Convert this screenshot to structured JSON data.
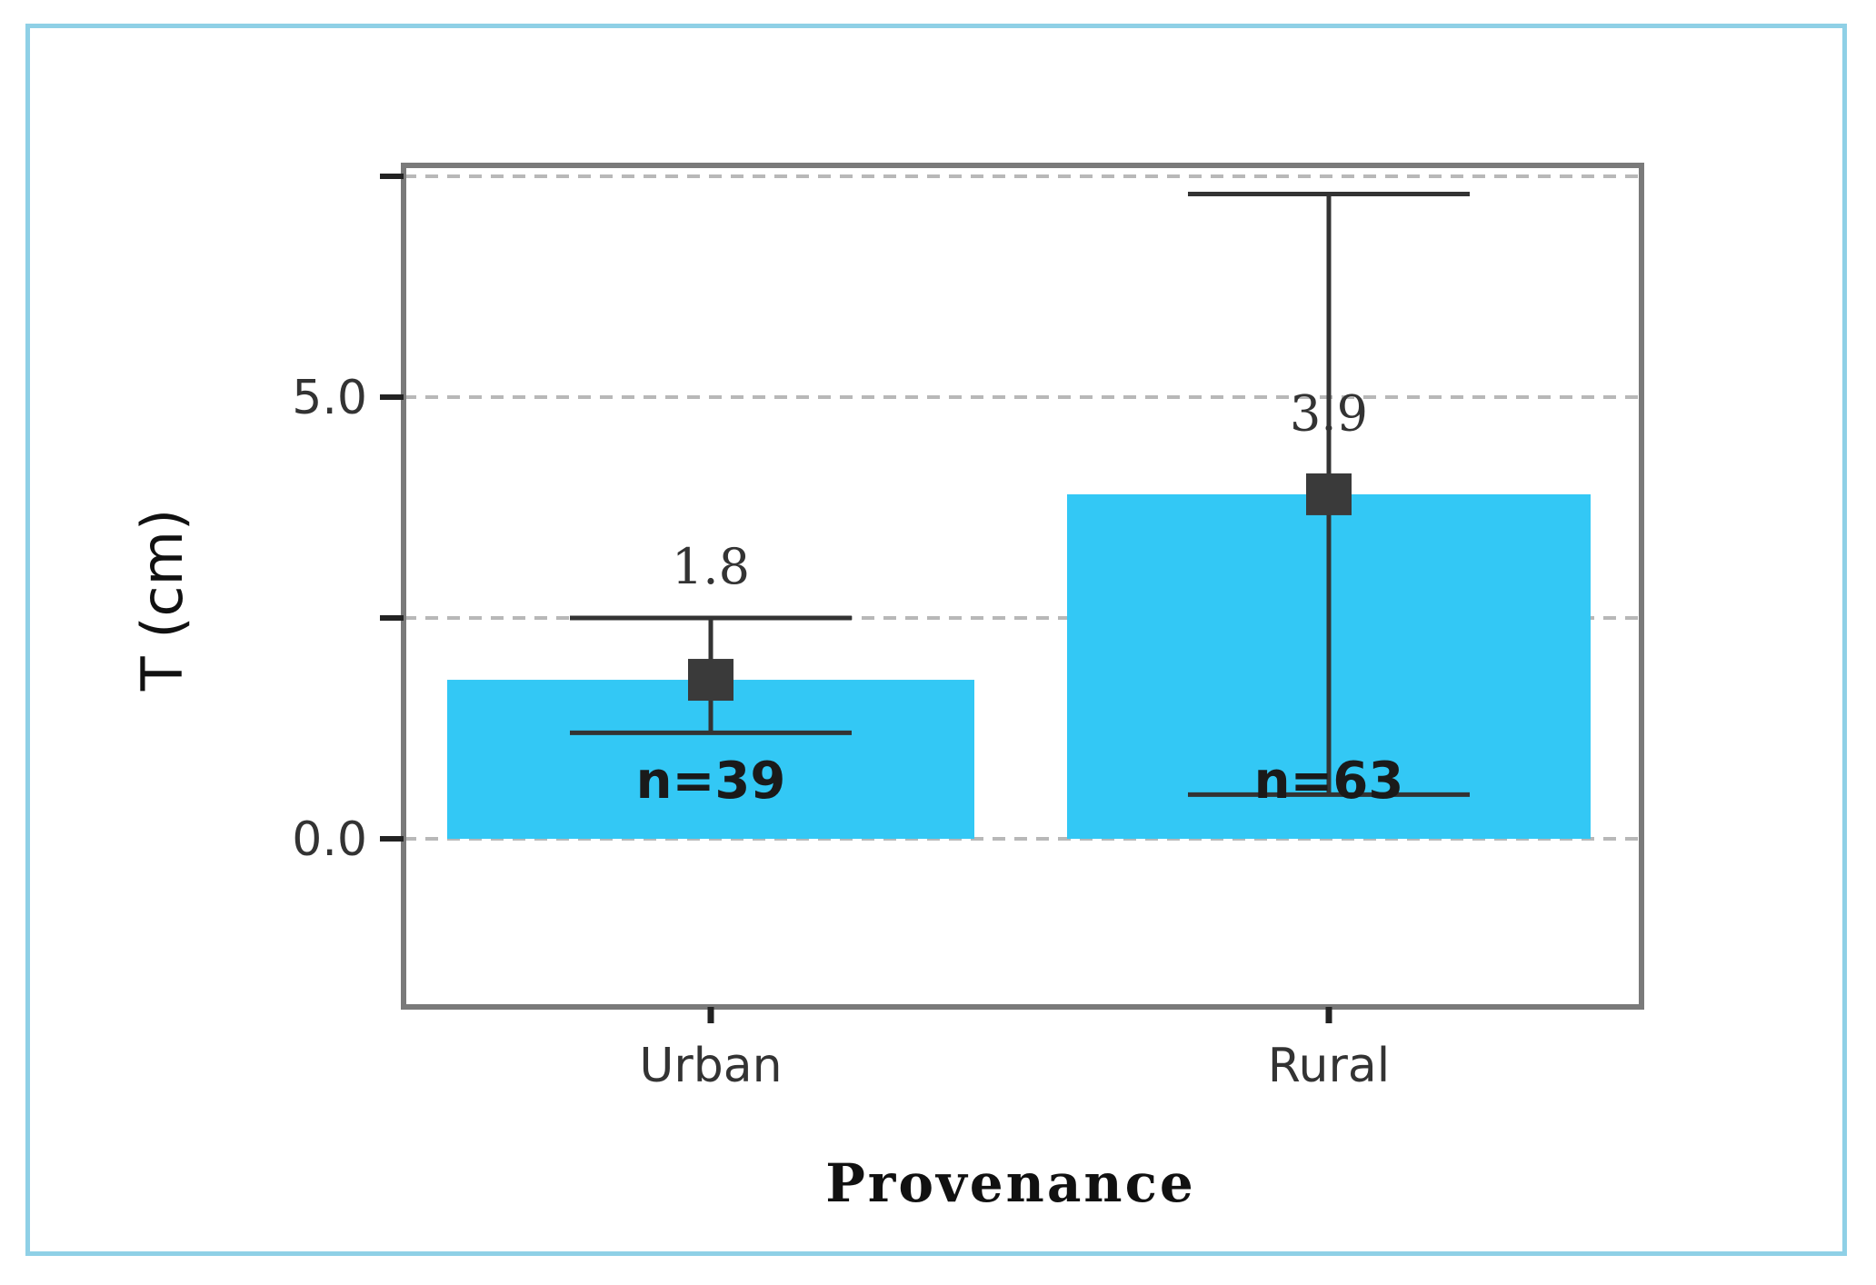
{
  "chart_data": {
    "type": "bar",
    "title": "",
    "xlabel": "Provenance",
    "ylabel": "T (cm)",
    "categories": [
      "Urban",
      "Rural"
    ],
    "values": [
      1.8,
      3.9
    ],
    "error_low": [
      1.2,
      0.5
    ],
    "error_high": [
      2.5,
      7.3
    ],
    "n_labels": [
      "n=39",
      "n=63"
    ],
    "mean_labels": [
      "1.8",
      "3.9"
    ],
    "ylim": [
      -1.9,
      7.5
    ],
    "y_ticks": [
      0.0,
      2.5,
      5.0,
      7.5
    ],
    "y_tick_labels": [
      "0.0",
      "",
      "5.0",
      ""
    ],
    "grid": true,
    "bar_color": "#33c8f5",
    "error_color": "#333333",
    "frame_color": "#8fd0e6"
  }
}
